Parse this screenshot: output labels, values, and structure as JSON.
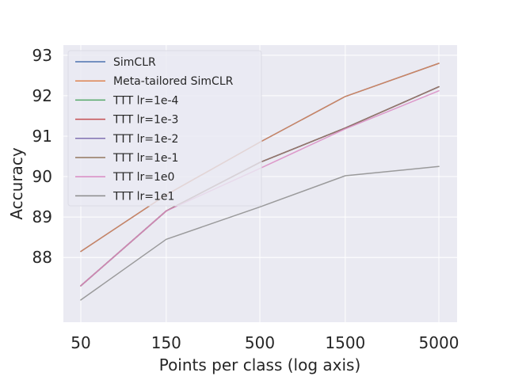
{
  "chart_data": {
    "type": "line",
    "title": "",
    "xlabel": "Points per class (log axis)",
    "ylabel": "Accuracy",
    "x_scale": "log",
    "x": [
      50,
      150,
      500,
      1500,
      5000
    ],
    "x_tick_labels": [
      "50",
      "150",
      "500",
      "1500",
      "5000"
    ],
    "y_ticks": [
      88,
      89,
      90,
      91,
      92,
      93
    ],
    "ylim": [
      86.4,
      93.25
    ],
    "grid": true,
    "legend_position": "upper-left",
    "series": [
      {
        "name": "SimCLR",
        "color": "#4c72b0",
        "values": [
          88.15,
          89.55,
          90.85,
          91.98,
          92.8
        ]
      },
      {
        "name": "Meta-tailored SimCLR",
        "color": "#dd8452",
        "values": [
          88.15,
          89.55,
          90.85,
          91.98,
          92.8
        ]
      },
      {
        "name": "TTT lr=1e-4",
        "color": "#55a868",
        "values": [
          87.3,
          89.15,
          90.35,
          91.2,
          92.22
        ]
      },
      {
        "name": "TTT lr=1e-3",
        "color": "#c44e52",
        "values": [
          87.3,
          89.15,
          90.35,
          91.2,
          92.22
        ]
      },
      {
        "name": "TTT lr=1e-2",
        "color": "#8172b3",
        "values": [
          87.3,
          89.15,
          90.35,
          91.2,
          92.22
        ]
      },
      {
        "name": "TTT lr=1e-1",
        "color": "#937860",
        "values": [
          87.3,
          89.15,
          90.35,
          91.2,
          92.22
        ]
      },
      {
        "name": "TTT lr=1e0",
        "color": "#da8bc3",
        "values": [
          87.3,
          89.15,
          90.2,
          91.18,
          92.12
        ]
      },
      {
        "name": "TTT lr=1e1",
        "color": "#8c8c8c",
        "values": [
          86.95,
          88.45,
          89.25,
          90.02,
          90.25
        ]
      }
    ]
  }
}
